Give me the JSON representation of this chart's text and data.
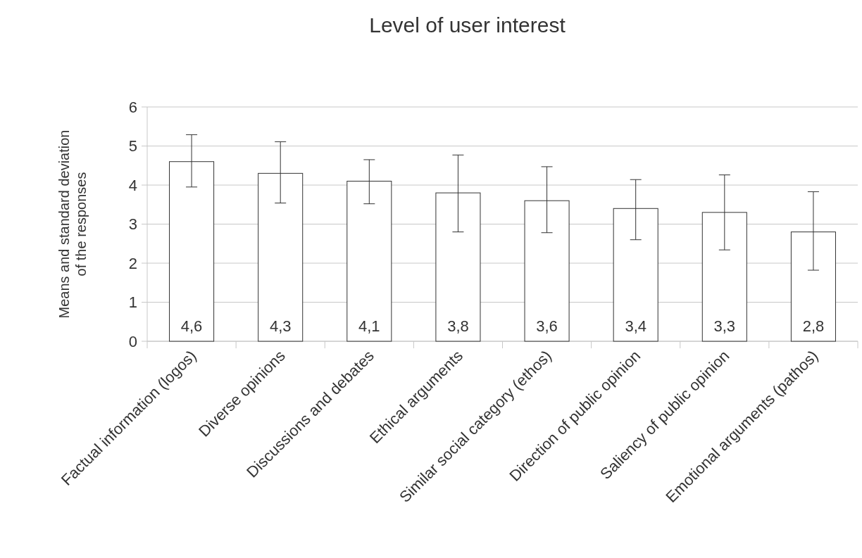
{
  "chart_data": {
    "type": "bar",
    "title": "Level of user interest",
    "ylabel": "Means and standard deviation\nof the responses",
    "categories": [
      "Factual information (logos)",
      "Diverse opinions",
      "Discussions and debates",
      "Ethical arguments",
      "Similar social category (ethos)",
      "Direction of public opinion",
      "Saliency of public opinion",
      "Emotional arguments (pathos)"
    ],
    "values": [
      4.6,
      4.3,
      4.1,
      3.8,
      3.6,
      3.4,
      3.3,
      2.8
    ],
    "value_labels": [
      "4,6",
      "4,3",
      "4,1",
      "3,8",
      "3,6",
      "3,4",
      "3,3",
      "2,8"
    ],
    "errors": [
      [
        3.95,
        5.29
      ],
      [
        3.54,
        5.11
      ],
      [
        3.52,
        4.65
      ],
      [
        2.8,
        4.77
      ],
      [
        2.78,
        4.47
      ],
      [
        2.6,
        4.14
      ],
      [
        2.34,
        4.26
      ],
      [
        1.82,
        3.83
      ]
    ],
    "color": "#ffffff",
    "ylim": [
      0,
      6
    ],
    "yticks": [
      0,
      1,
      2,
      3,
      4,
      5,
      6
    ],
    "grid": "y"
  }
}
